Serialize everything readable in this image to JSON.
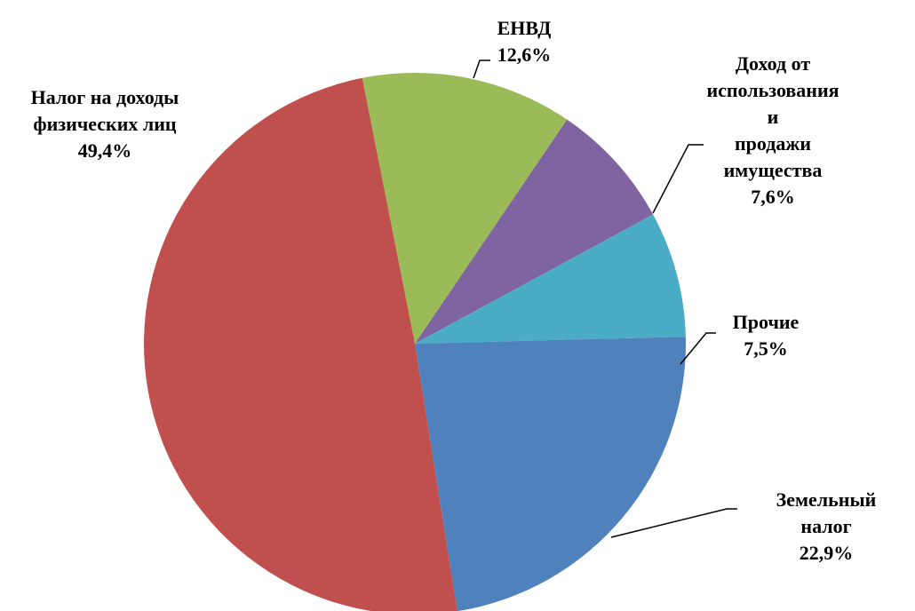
{
  "chart_data": {
    "type": "pie",
    "categories": [
      "ЕНВД",
      "Доход от\nиспользования и\nпродажи\nимущества",
      "Прочие",
      "Земельный налог",
      "Налог на доходы\nфизических лиц"
    ],
    "values": [
      12.6,
      7.6,
      7.5,
      22.9,
      49.4
    ],
    "value_labels": [
      "12,6%",
      "7,6%",
      "7,5%",
      "22,9%",
      "49,4%"
    ],
    "colors": [
      "#9bbb59",
      "#8064a2",
      "#4bacc6",
      "#4f81bd",
      "#c0504d"
    ]
  }
}
